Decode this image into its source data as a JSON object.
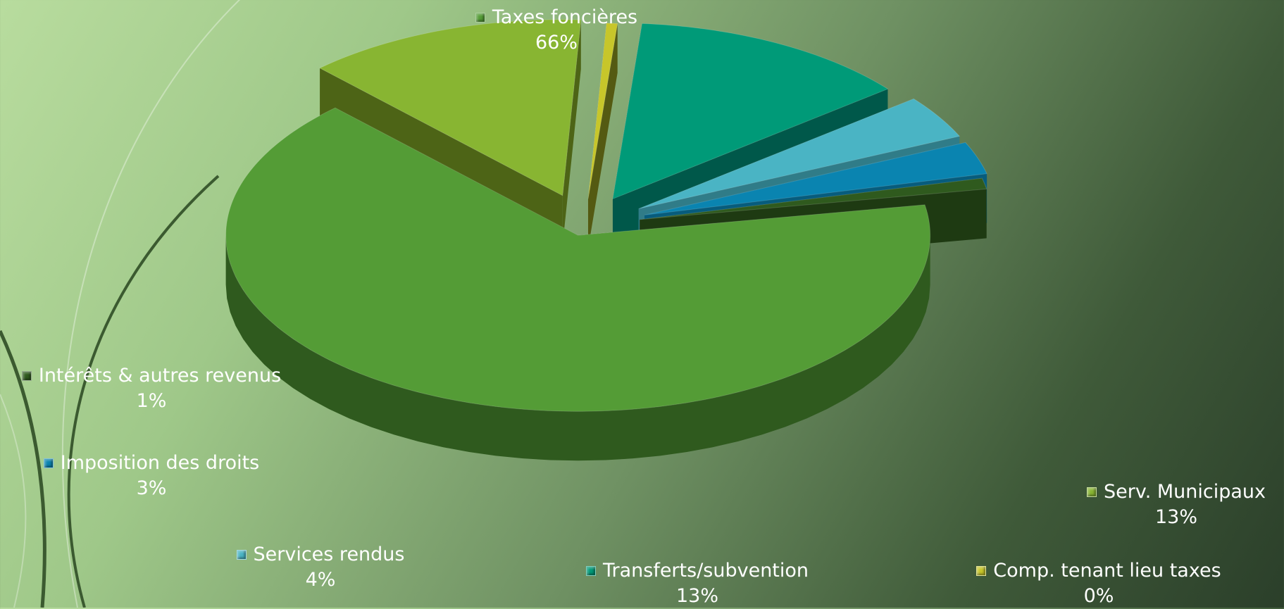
{
  "chart_data": {
    "type": "pie",
    "style": "3d-exploded",
    "slices": [
      {
        "label": "Taxes foncières",
        "value": 66,
        "display": "66%",
        "color": "#549c36",
        "side": "#2f5a1e"
      },
      {
        "label": "Serv. Municipaux",
        "value": 13,
        "display": "13%",
        "color": "#88b532",
        "side": "#4d6416"
      },
      {
        "label": "Comp. tenant lieu taxes",
        "value": 0.5,
        "display": "0%",
        "color": "#c7c62a",
        "side": "#545a12"
      },
      {
        "label": "Transferts/subvention",
        "value": 13,
        "display": "13%",
        "color": "#009a78",
        "side": "#00584a"
      },
      {
        "label": "Services rendus",
        "value": 4,
        "display": "4%",
        "color": "#4ab4c4",
        "side": "#307c88"
      },
      {
        "label": "Imposition des droits",
        "value": 3,
        "display": "3%",
        "color": "#0a84b0",
        "side": "#075c7c"
      },
      {
        "label": "Intérêts & autres revenus",
        "value": 1,
        "display": "1%",
        "color": "#2f5a1e",
        "side": "#1e3a12"
      }
    ],
    "legend": "none",
    "data_labels": "outside with category name and percentage"
  }
}
